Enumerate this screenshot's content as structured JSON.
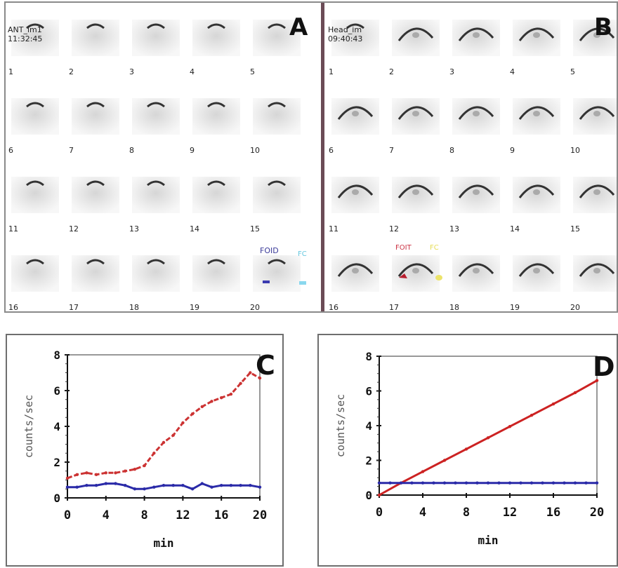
{
  "panel_a": {
    "letter": "A",
    "acq_name": "ANT_im1",
    "acq_time": "11:32:45",
    "frame_numbers": [
      "1",
      "2",
      "3",
      "4",
      "5",
      "6",
      "7",
      "8",
      "9",
      "10",
      "11",
      "12",
      "13",
      "14",
      "15",
      "16",
      "17",
      "18",
      "19",
      "20"
    ],
    "roi_label_1": "FOID",
    "roi_label_2": "FC"
  },
  "panel_b": {
    "letter": "B",
    "acq_name": "Head_im",
    "acq_time": "09:40:43",
    "frame_numbers": [
      "1",
      "2",
      "3",
      "4",
      "5",
      "6",
      "7",
      "8",
      "9",
      "10",
      "11",
      "12",
      "13",
      "14",
      "15",
      "16",
      "17",
      "18",
      "19",
      "20"
    ],
    "roi_label_1": "FOIT",
    "roi_label_2": "FC"
  },
  "chart_data": [
    {
      "panel": "C",
      "type": "line",
      "xlabel": "min",
      "ylabel": "counts/sec",
      "xlim": [
        0,
        20
      ],
      "ylim": [
        0,
        8
      ],
      "xticks": [
        "0",
        "4",
        "8",
        "12",
        "16",
        "20"
      ],
      "yticks": [
        "0",
        "2",
        "4",
        "6",
        "8"
      ],
      "series": [
        {
          "color": "#cc3333",
          "style": "dashed",
          "x": [
            0,
            1,
            2,
            3,
            4,
            5,
            6,
            7,
            8,
            9,
            10,
            11,
            12,
            13,
            14,
            15,
            16,
            17,
            18,
            19,
            20
          ],
          "y": [
            1.1,
            1.3,
            1.4,
            1.3,
            1.4,
            1.4,
            1.5,
            1.6,
            1.8,
            2.5,
            3.1,
            3.5,
            4.2,
            4.7,
            5.1,
            5.4,
            5.6,
            5.8,
            6.4,
            7.0,
            6.7
          ]
        },
        {
          "color": "#2a2aa8",
          "style": "solid-markers",
          "x": [
            0,
            1,
            2,
            3,
            4,
            5,
            6,
            7,
            8,
            9,
            10,
            11,
            12,
            13,
            14,
            15,
            16,
            17,
            18,
            19,
            20
          ],
          "y": [
            0.6,
            0.6,
            0.7,
            0.7,
            0.8,
            0.8,
            0.7,
            0.5,
            0.5,
            0.6,
            0.7,
            0.7,
            0.7,
            0.5,
            0.8,
            0.6,
            0.7,
            0.7,
            0.7,
            0.7,
            0.6
          ]
        }
      ]
    },
    {
      "panel": "D",
      "type": "line",
      "xlabel": "min",
      "ylabel": "counts/sec",
      "xlim": [
        0,
        20
      ],
      "ylim": [
        0,
        8
      ],
      "xticks": [
        "0",
        "4",
        "8",
        "12",
        "16",
        "20"
      ],
      "yticks": [
        "0",
        "2",
        "4",
        "6",
        "8"
      ],
      "series": [
        {
          "color": "#cc2222",
          "style": "solid",
          "x": [
            0,
            2,
            4,
            6,
            8,
            10,
            12,
            14,
            16,
            18,
            20
          ],
          "y": [
            0.0,
            0.7,
            1.35,
            2.0,
            2.65,
            3.3,
            3.95,
            4.6,
            5.25,
            5.9,
            6.6
          ]
        },
        {
          "color": "#2a2aa8",
          "style": "solid-markers",
          "x": [
            0,
            1,
            2,
            3,
            4,
            5,
            6,
            7,
            8,
            9,
            10,
            11,
            12,
            13,
            14,
            15,
            16,
            17,
            18,
            19,
            20
          ],
          "y": [
            0.7,
            0.7,
            0.7,
            0.7,
            0.7,
            0.7,
            0.7,
            0.7,
            0.7,
            0.7,
            0.7,
            0.7,
            0.7,
            0.7,
            0.7,
            0.7,
            0.7,
            0.7,
            0.7,
            0.7,
            0.7
          ]
        }
      ]
    }
  ]
}
